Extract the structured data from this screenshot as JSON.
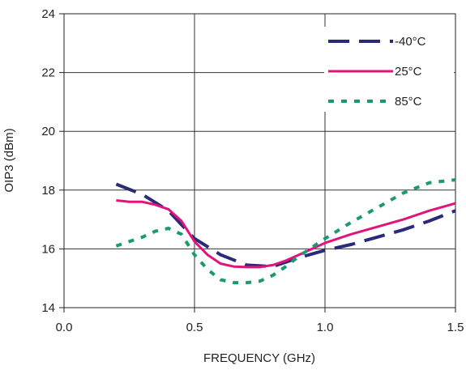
{
  "chart_data": {
    "type": "line",
    "title": "",
    "xlabel": "FREQUENCY (GHz)",
    "ylabel": "OIP3 (dBm)",
    "xlim": [
      0.0,
      1.5
    ],
    "ylim": [
      14,
      24
    ],
    "x_ticks": [
      "0.0",
      "0.5",
      "1.0",
      "1.5"
    ],
    "y_ticks": [
      "14",
      "16",
      "18",
      "20",
      "22",
      "24"
    ],
    "grid": true,
    "legend_position": "top-right",
    "series": [
      {
        "name": "-40°C",
        "color": "#2b2a7a",
        "style": "dashed",
        "x": [
          0.2,
          0.3,
          0.4,
          0.5,
          0.6,
          0.7,
          0.8,
          0.9,
          1.0,
          1.1,
          1.2,
          1.3,
          1.4,
          1.5
        ],
        "y": [
          18.2,
          17.85,
          17.3,
          16.35,
          15.8,
          15.45,
          15.4,
          15.7,
          15.95,
          16.15,
          16.4,
          16.65,
          16.95,
          17.3
        ]
      },
      {
        "name": "25°C",
        "color": "#e0147a",
        "style": "solid",
        "x": [
          0.2,
          0.25,
          0.3,
          0.35,
          0.4,
          0.45,
          0.5,
          0.55,
          0.6,
          0.65,
          0.7,
          0.75,
          0.8,
          0.85,
          0.9,
          0.95,
          1.0,
          1.1,
          1.2,
          1.3,
          1.4,
          1.5
        ],
        "y": [
          17.65,
          17.6,
          17.6,
          17.5,
          17.35,
          16.95,
          16.25,
          15.8,
          15.5,
          15.4,
          15.38,
          15.38,
          15.45,
          15.6,
          15.8,
          16.0,
          16.2,
          16.5,
          16.75,
          17.0,
          17.3,
          17.55
        ]
      },
      {
        "name": "85°C",
        "color": "#1a9a70",
        "style": "dotted",
        "x": [
          0.2,
          0.25,
          0.3,
          0.35,
          0.4,
          0.45,
          0.5,
          0.55,
          0.6,
          0.65,
          0.7,
          0.75,
          0.8,
          0.85,
          0.9,
          0.95,
          1.0,
          1.1,
          1.2,
          1.3,
          1.4,
          1.5
        ],
        "y": [
          16.1,
          16.25,
          16.4,
          16.6,
          16.7,
          16.5,
          15.8,
          15.3,
          14.95,
          14.85,
          14.85,
          14.9,
          15.1,
          15.4,
          15.75,
          16.05,
          16.35,
          16.9,
          17.4,
          17.9,
          18.25,
          18.35
        ]
      }
    ]
  }
}
